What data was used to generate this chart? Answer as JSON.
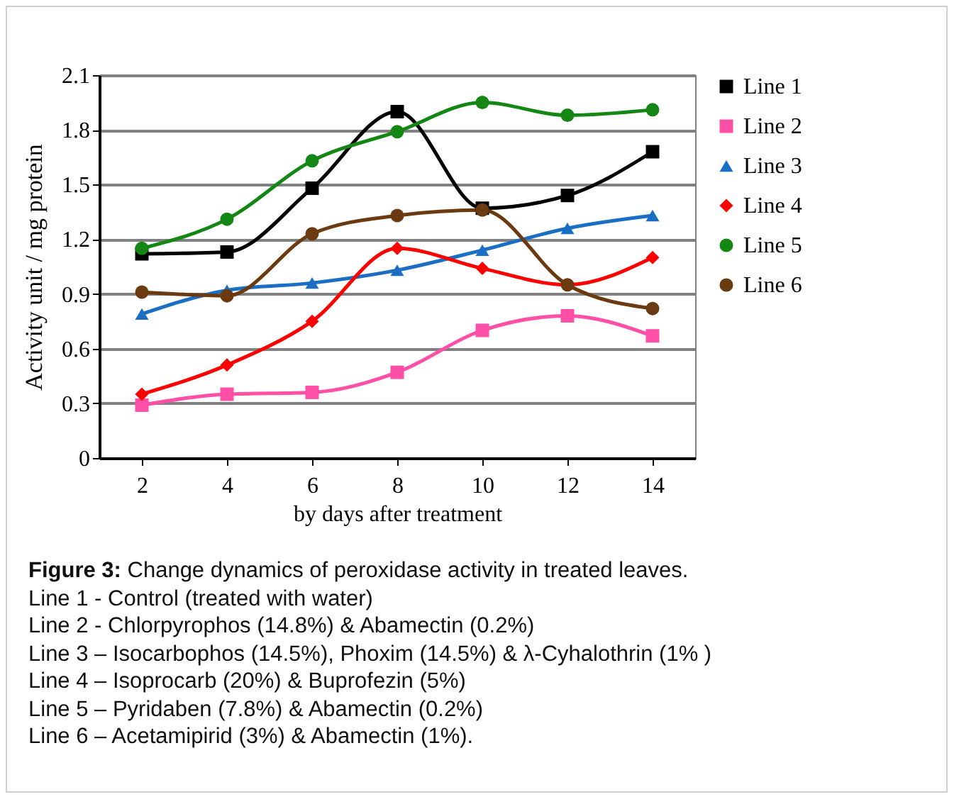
{
  "chart_data": {
    "type": "line",
    "xlabel": "by days after treatment",
    "ylabel": "Activity unit  / mg protein",
    "x": [
      2,
      4,
      6,
      8,
      10,
      12,
      14
    ],
    "xlim": [
      1,
      15
    ],
    "xticks": [
      2,
      4,
      6,
      8,
      10,
      12,
      14
    ],
    "ylim": [
      0,
      2.1
    ],
    "yticks": [
      0,
      0.3,
      0.6,
      0.9,
      1.2,
      1.5,
      1.8,
      2.1
    ],
    "grid": "y",
    "legend": "right",
    "series": [
      {
        "name": "Line 1",
        "color": "#000000",
        "marker": "square",
        "values": [
          1.12,
          1.13,
          1.48,
          1.9,
          1.37,
          1.44,
          1.68
        ]
      },
      {
        "name": "Line 2",
        "color": "#ff4fa7",
        "marker": "square",
        "values": [
          0.29,
          0.35,
          0.36,
          0.47,
          0.7,
          0.78,
          0.67
        ]
      },
      {
        "name": "Line 3",
        "color": "#1a6fc4",
        "marker": "triangle",
        "values": [
          0.79,
          0.92,
          0.96,
          1.03,
          1.14,
          1.26,
          1.33
        ]
      },
      {
        "name": "Line 4",
        "color": "#ff0000",
        "marker": "diamond",
        "values": [
          0.35,
          0.51,
          0.75,
          1.15,
          1.04,
          0.95,
          1.1
        ]
      },
      {
        "name": "Line 5",
        "color": "#138613",
        "marker": "circle",
        "values": [
          1.15,
          1.31,
          1.63,
          1.79,
          1.95,
          1.88,
          1.91
        ]
      },
      {
        "name": "Line 6",
        "color": "#6b3a10",
        "marker": "circle",
        "values": [
          0.91,
          0.89,
          1.23,
          1.33,
          1.36,
          0.95,
          0.82
        ]
      }
    ],
    "annotations": [
      "Figure 3: Change dynamics of peroxidase activity in treated leaves.",
      "Line 1 - Control (treated with water)",
      "Line 2 - Chlorpyrophos (14.8%) & Abamectin (0.2%)",
      "Line 3 – Isocarbophos (14.5%), Phoxim (14.5%) & λ-Cyhalothrin (1% )",
      "Line 4 – Isoprocarb (20%) & Buprofezin (5%)",
      "Line 5 – Pyridaben (7.8%) & Abamectin (0.2%)",
      "Line 6 – Acetamipirid (3%) & Abamectin (1%)."
    ]
  }
}
